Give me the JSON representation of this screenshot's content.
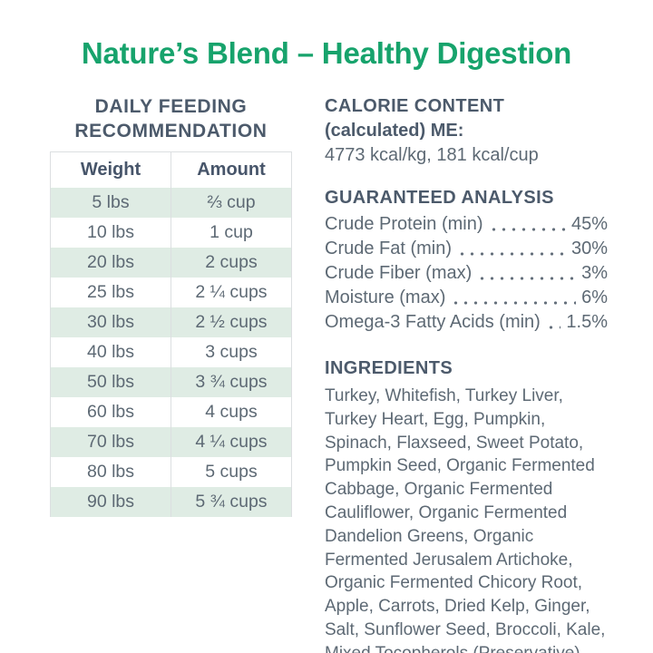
{
  "title": "Nature’s Blend – Healthy Digestion",
  "colors": {
    "brand_green": "#17a36c",
    "heading_slate": "#4c5a6b",
    "body_gray": "#5d6974",
    "row_green": "#dfece4",
    "table_border": "#dcdfe1"
  },
  "feeding": {
    "heading_line1": "DAILY FEEDING",
    "heading_line2": "RECOMMENDATION",
    "columns": [
      "Weight",
      "Amount"
    ],
    "rows": [
      {
        "weight": "5 lbs",
        "amount": "⅔ cup"
      },
      {
        "weight": "10 lbs",
        "amount": "1 cup"
      },
      {
        "weight": "20 lbs",
        "amount": "2 cups"
      },
      {
        "weight": "25 lbs",
        "amount": "2 ¼ cups"
      },
      {
        "weight": "30 lbs",
        "amount": "2 ½ cups"
      },
      {
        "weight": "40 lbs",
        "amount": "3 cups"
      },
      {
        "weight": "50 lbs",
        "amount": "3 ¾ cups"
      },
      {
        "weight": "60 lbs",
        "amount": "4 cups"
      },
      {
        "weight": "70 lbs",
        "amount": "4 ¼ cups"
      },
      {
        "weight": "80 lbs",
        "amount": "5 cups"
      },
      {
        "weight": "90 lbs",
        "amount": "5 ¾ cups"
      }
    ]
  },
  "calorie": {
    "heading_line1": "CALORIE CONTENT",
    "heading_line2": "(calculated) ME:",
    "value": "4773 kcal/kg, 181 kcal/cup"
  },
  "analysis": {
    "heading": "GUARANTEED ANALYSIS",
    "items": [
      {
        "label": "Crude Protein (min)",
        "value": "45%"
      },
      {
        "label": "Crude Fat (min)",
        "value": "30%"
      },
      {
        "label": "Crude Fiber (max)",
        "value": "3%"
      },
      {
        "label": "Moisture (max)",
        "value": "6%"
      },
      {
        "label": "Omega-3 Fatty Acids (min)",
        "value": "1.5%"
      }
    ]
  },
  "ingredients": {
    "heading": "INGREDIENTS",
    "text": "Turkey, Whitefish, Turkey Liver, Turkey Heart, Egg, Pumpkin, Spinach, Flaxseed, Sweet Potato, Pumpkin Seed, Organic Fermented Cabbage, Organic Fermented Cauliflower, Organic Fermented Dandelion Greens, Organic Fermented Jerusalem Artichoke, Organic Fermented Chicory Root, Apple, Carrots, Dried Kelp, Ginger, Salt, Sunflower Seed, Broccoli, Kale, Mixed Tocopherols (Preservative)"
  }
}
